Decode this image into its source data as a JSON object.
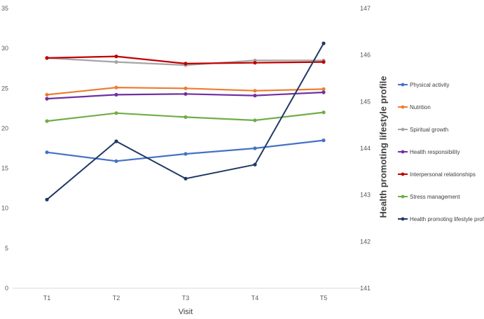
{
  "chart_data": {
    "type": "line",
    "categories": [
      "T1",
      "T2",
      "T3",
      "T4",
      "T5"
    ],
    "xlabel": "Visit",
    "ylabel": "",
    "y2label": "Health promoting lifestyle profile",
    "ylim": [
      0,
      35
    ],
    "y2lim": [
      141,
      147
    ],
    "yticks": [
      0,
      5,
      10,
      15,
      20,
      25,
      30,
      35
    ],
    "y2ticks": [
      141,
      142,
      143,
      144,
      145,
      146,
      147
    ],
    "grid": false,
    "legend_position": "right",
    "series": [
      {
        "name": "Physical activity",
        "axis": "left",
        "color": "#4472C4",
        "values": [
          17.0,
          15.9,
          16.8,
          17.5,
          18.5
        ]
      },
      {
        "name": "Nutrition",
        "axis": "left",
        "color": "#ED7D31",
        "values": [
          24.2,
          25.1,
          25.0,
          24.7,
          24.9
        ]
      },
      {
        "name": "Spiritual growth",
        "axis": "left",
        "color": "#A5A5A5",
        "values": [
          28.8,
          28.3,
          27.9,
          28.5,
          28.5
        ]
      },
      {
        "name": "Health responsibility",
        "axis": "left",
        "color": "#7030A0",
        "values": [
          23.7,
          24.2,
          24.3,
          24.1,
          24.5
        ]
      },
      {
        "name": "Interpersonal relationships",
        "axis": "left",
        "color": "#C00000",
        "values": [
          28.8,
          29.0,
          28.1,
          28.2,
          28.3
        ]
      },
      {
        "name": "Stress management",
        "axis": "left",
        "color": "#70AD47",
        "values": [
          20.9,
          21.9,
          21.4,
          21.0,
          22.0
        ]
      },
      {
        "name": "Health promoting lifestyle profile",
        "axis": "right",
        "color": "#1F3864",
        "values": [
          142.9,
          144.15,
          143.35,
          143.65,
          146.25
        ]
      }
    ]
  }
}
